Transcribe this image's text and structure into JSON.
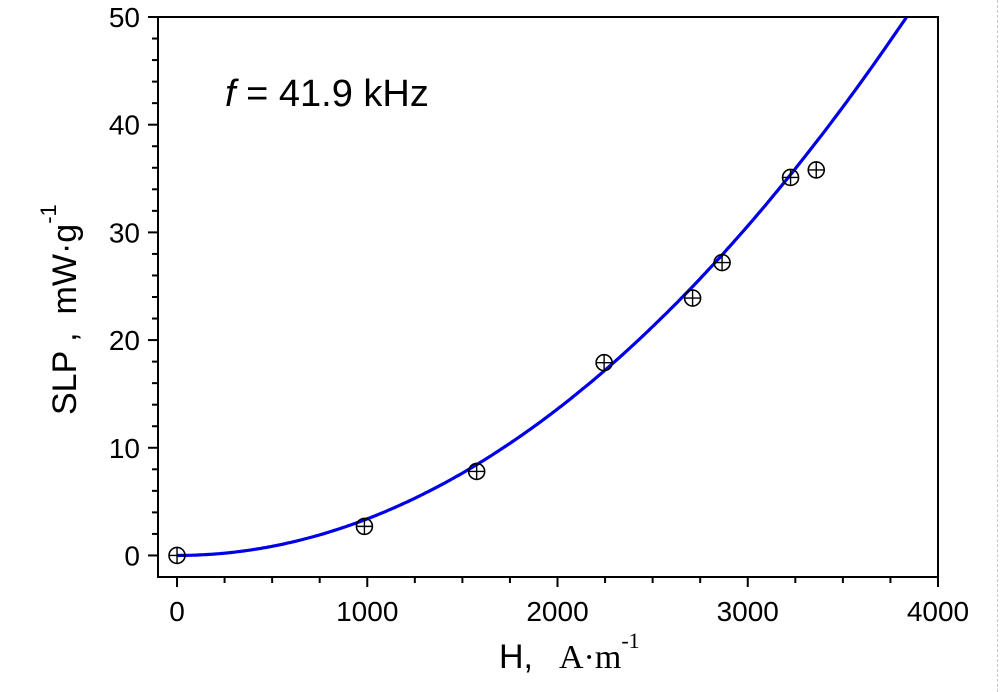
{
  "chart_data": {
    "type": "scatter",
    "annotation": {
      "var": "f",
      "text": " = 41.9 kHz"
    },
    "xlabel": {
      "main": "H,",
      "unit": "A·m",
      "exp": "-1"
    },
    "ylabel": {
      "main": "SLP ,",
      "unit": "mW·g",
      "exp": "-1"
    },
    "xlim": [
      -100,
      4000
    ],
    "ylim": [
      -2,
      50
    ],
    "xticks": [
      0,
      1000,
      2000,
      3000,
      4000
    ],
    "yticks": [
      0,
      10,
      20,
      30,
      40,
      50
    ],
    "points": [
      {
        "x": 0,
        "y": 0
      },
      {
        "x": 985,
        "y": 2.7
      },
      {
        "x": 1575,
        "y": 7.8
      },
      {
        "x": 2245,
        "y": 17.9
      },
      {
        "x": 2710,
        "y": 23.9
      },
      {
        "x": 2865,
        "y": 27.2
      },
      {
        "x": 3225,
        "y": 35.1
      },
      {
        "x": 3360,
        "y": 35.8
      }
    ],
    "fit": {
      "model": "power",
      "a": 3.4e-06,
      "n": 2,
      "color": "#0000e6"
    },
    "marker_color": "#000000",
    "grid": false
  }
}
